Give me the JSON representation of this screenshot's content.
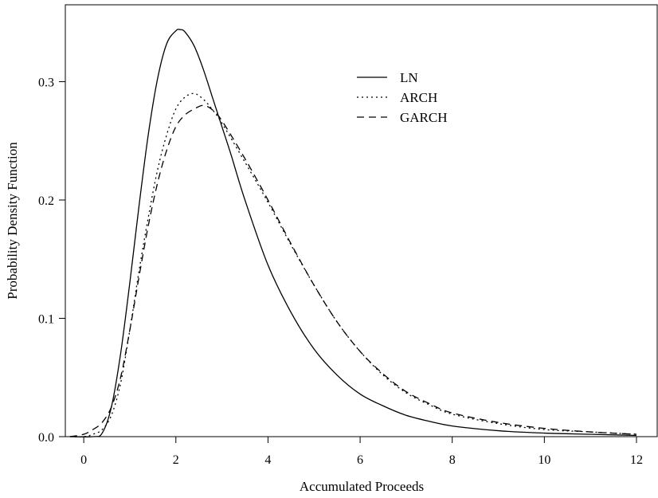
{
  "chart_data": {
    "type": "line",
    "title": "",
    "xlabel": "Accumulated Proceeds",
    "ylabel": "Probability Density Function",
    "xlim": [
      -0.4,
      12.45
    ],
    "ylim": [
      0,
      0.365
    ],
    "x_ticks": [
      "0",
      "2",
      "4",
      "6",
      "8",
      "10",
      "12"
    ],
    "y_ticks": [
      "0.0",
      "0.1",
      "0.2",
      "0.3"
    ],
    "grid": false,
    "legend_position": "top-center",
    "series": [
      {
        "name": "LN",
        "line_style": "solid",
        "x": [
          -0.3,
          0.2,
          0.4,
          0.6,
          0.8,
          1.0,
          1.2,
          1.4,
          1.6,
          1.8,
          2.0,
          2.1,
          2.2,
          2.4,
          2.6,
          2.8,
          3.0,
          3.2,
          3.5,
          4.0,
          4.5,
          5.0,
          5.5,
          6.0,
          6.5,
          7.0,
          7.5,
          8.0,
          9.0,
          10.0,
          11.0,
          12.0
        ],
        "y": [
          0.0,
          0.0,
          0.003,
          0.025,
          0.07,
          0.13,
          0.195,
          0.255,
          0.302,
          0.332,
          0.343,
          0.344,
          0.342,
          0.33,
          0.31,
          0.286,
          0.262,
          0.238,
          0.2,
          0.145,
          0.105,
          0.074,
          0.052,
          0.036,
          0.026,
          0.018,
          0.013,
          0.009,
          0.005,
          0.003,
          0.002,
          0.001
        ]
      },
      {
        "name": "ARCH",
        "line_style": "dotted",
        "x": [
          -0.3,
          0.0,
          0.2,
          0.4,
          0.6,
          0.8,
          1.0,
          1.2,
          1.4,
          1.6,
          1.8,
          2.0,
          2.2,
          2.4,
          2.6,
          2.8,
          3.0,
          3.5,
          4.0,
          4.5,
          5.0,
          5.5,
          6.0,
          6.5,
          7.0,
          7.5,
          8.0,
          9.0,
          10.0,
          11.0,
          12.0
        ],
        "y": [
          0.0,
          0.0,
          0.002,
          0.006,
          0.018,
          0.045,
          0.09,
          0.14,
          0.185,
          0.225,
          0.255,
          0.277,
          0.287,
          0.29,
          0.285,
          0.276,
          0.265,
          0.232,
          0.198,
          0.162,
          0.128,
          0.097,
          0.072,
          0.052,
          0.037,
          0.027,
          0.019,
          0.011,
          0.006,
          0.004,
          0.002
        ]
      },
      {
        "name": "GARCH",
        "line_style": "dashed",
        "x": [
          -0.3,
          0.0,
          0.2,
          0.4,
          0.6,
          0.8,
          1.0,
          1.2,
          1.4,
          1.6,
          1.8,
          2.0,
          2.2,
          2.4,
          2.6,
          2.8,
          3.0,
          3.5,
          4.0,
          4.5,
          5.0,
          5.5,
          6.0,
          6.5,
          7.0,
          7.5,
          8.0,
          9.0,
          10.0,
          11.0,
          12.0
        ],
        "y": [
          0.0,
          0.002,
          0.006,
          0.012,
          0.025,
          0.05,
          0.09,
          0.135,
          0.178,
          0.214,
          0.242,
          0.262,
          0.272,
          0.277,
          0.28,
          0.276,
          0.267,
          0.235,
          0.2,
          0.163,
          0.128,
          0.097,
          0.072,
          0.053,
          0.038,
          0.028,
          0.02,
          0.012,
          0.007,
          0.004,
          0.002
        ]
      }
    ]
  }
}
